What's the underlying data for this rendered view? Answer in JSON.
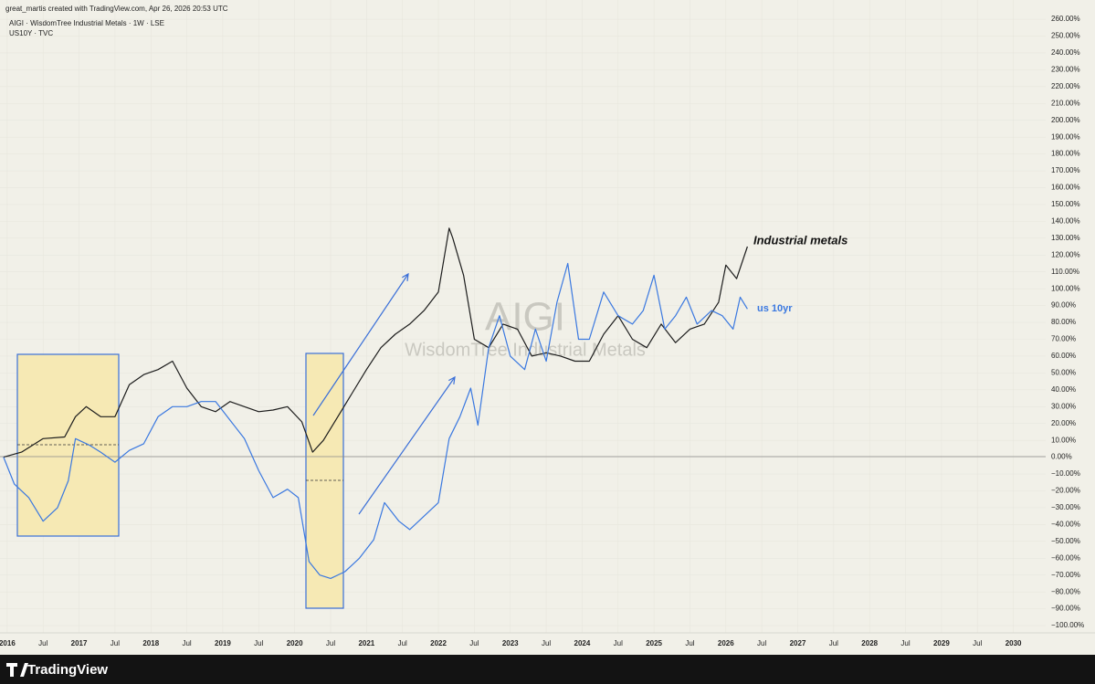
{
  "chart_data": {
    "type": "line",
    "attribution": "great_martis created with TradingView.com, Apr 26, 2026 20:53 UTC",
    "watermark": "AIGI",
    "watermark_subtitle": "WisdomTree Industrial Metals",
    "brand": "TradingView",
    "annotations": [
      "Industrial metals",
      "us 10yr"
    ],
    "xlim": [
      2015.9,
      2030.45
    ],
    "ylim": [
      -104.3,
      271.4
    ],
    "grid": true,
    "xticks": [
      2016,
      {
        "value": 2016.5,
        "label": "Jul"
      },
      2017,
      {
        "value": 2017.5,
        "label": "Jul"
      },
      2018,
      {
        "value": 2018.5,
        "label": "Jul"
      },
      2019,
      {
        "value": 2019.5,
        "label": "Jul"
      },
      2020,
      {
        "value": 2020.5,
        "label": "Jul"
      },
      2021,
      {
        "value": 2021.5,
        "label": "Jul"
      },
      2022,
      {
        "value": 2022.5,
        "label": "Jul"
      },
      2023,
      {
        "value": 2023.5,
        "label": "Jul"
      },
      2024,
      {
        "value": 2024.5,
        "label": "Jul"
      },
      2025,
      {
        "value": 2025.5,
        "label": "Jul"
      },
      2026,
      {
        "value": 2026.5,
        "label": "Jul"
      },
      2027,
      {
        "value": 2027.5,
        "label": "Jul"
      },
      2028,
      {
        "value": 2028.5,
        "label": "Jul"
      },
      2029,
      {
        "value": 2029.5,
        "label": "Jul"
      },
      2030
    ],
    "yticks": [
      {
        "value": 260,
        "label": "260.00%"
      },
      {
        "value": 250,
        "label": "250.00%"
      },
      {
        "value": 240,
        "label": "240.00%"
      },
      {
        "value": 230,
        "label": "230.00%"
      },
      {
        "value": 220,
        "label": "220.00%"
      },
      {
        "value": 210,
        "label": "210.00%"
      },
      {
        "value": 200,
        "label": "200.00%"
      },
      {
        "value": 190,
        "label": "190.00%"
      },
      {
        "value": 180,
        "label": "180.00%"
      },
      {
        "value": 170,
        "label": "170.00%"
      },
      {
        "value": 160,
        "label": "160.00%"
      },
      {
        "value": 150,
        "label": "150.00%"
      },
      {
        "value": 140,
        "label": "140.00%"
      },
      {
        "value": 130,
        "label": "130.00%"
      },
      {
        "value": 120,
        "label": "120.00%"
      },
      {
        "value": 110,
        "label": "110.00%"
      },
      {
        "value": 100,
        "label": "100.00%"
      },
      {
        "value": 90,
        "label": "90.00%"
      },
      {
        "value": 80,
        "label": "80.00%"
      },
      {
        "value": 70,
        "label": "70.00%"
      },
      {
        "value": 60,
        "label": "60.00%"
      },
      {
        "value": 50,
        "label": "50.00%"
      },
      {
        "value": 40,
        "label": "40.00%"
      },
      {
        "value": 30,
        "label": "30.00%"
      },
      {
        "value": 20,
        "label": "20.00%"
      },
      {
        "value": 10,
        "label": "10.00%"
      },
      {
        "value": 0,
        "label": "0.00%"
      },
      {
        "value": -10,
        "label": "−10.00%"
      },
      {
        "value": -20,
        "label": "−20.00%"
      },
      {
        "value": -30,
        "label": "−30.00%"
      },
      {
        "value": -40,
        "label": "−40.00%"
      },
      {
        "value": -50,
        "label": "−50.00%"
      },
      {
        "value": -60,
        "label": "−60.00%"
      },
      {
        "value": -70,
        "label": "−70.00%"
      },
      {
        "value": -80,
        "label": "−80.00%"
      },
      {
        "value": -90,
        "label": "−90.00%"
      },
      {
        "value": -100,
        "label": "−100.00%"
      }
    ],
    "series": [
      {
        "name": "AIGI · WisdomTree Industrial Metals · 1W · LSE",
        "color": "#1c1c1c",
        "x": [
          2015.95,
          2016.2,
          2016.5,
          2016.8,
          2016.95,
          2017.1,
          2017.3,
          2017.5,
          2017.7,
          2017.9,
          2018.1,
          2018.3,
          2018.5,
          2018.7,
          2018.9,
          2019.1,
          2019.3,
          2019.5,
          2019.7,
          2019.9,
          2020.1,
          2020.25,
          2020.4,
          2020.6,
          2020.8,
          2021.0,
          2021.2,
          2021.4,
          2021.6,
          2021.8,
          2022.0,
          2022.15,
          2022.2,
          2022.35,
          2022.5,
          2022.7,
          2022.9,
          2023.1,
          2023.3,
          2023.5,
          2023.7,
          2023.9,
          2024.1,
          2024.3,
          2024.5,
          2024.7,
          2024.9,
          2025.1,
          2025.3,
          2025.5,
          2025.7,
          2025.9,
          2026.0,
          2026.15,
          2026.3
        ],
        "values": [
          0,
          3,
          11,
          12,
          24,
          30,
          24,
          24,
          43,
          49,
          52,
          57,
          41,
          30,
          27,
          33,
          30,
          27,
          28,
          30,
          21,
          3,
          10,
          24,
          38,
          52,
          65,
          73,
          79,
          87,
          98,
          136,
          130,
          108,
          70,
          65,
          79,
          76,
          60,
          62,
          60,
          57,
          57,
          73,
          84,
          70,
          65,
          79,
          68,
          76,
          79,
          92,
          114,
          106,
          125
        ]
      },
      {
        "name": "US10Y · TVC",
        "color": "#3a78e0",
        "x": [
          2015.95,
          2016.1,
          2016.3,
          2016.5,
          2016.7,
          2016.85,
          2016.95,
          2017.15,
          2017.3,
          2017.5,
          2017.7,
          2017.9,
          2018.1,
          2018.3,
          2018.5,
          2018.7,
          2018.9,
          2019.1,
          2019.3,
          2019.5,
          2019.7,
          2019.9,
          2020.05,
          2020.2,
          2020.35,
          2020.5,
          2020.7,
          2020.9,
          2021.1,
          2021.25,
          2021.45,
          2021.6,
          2021.8,
          2022.0,
          2022.15,
          2022.3,
          2022.45,
          2022.55,
          2022.7,
          2022.85,
          2023.0,
          2023.2,
          2023.35,
          2023.5,
          2023.65,
          2023.8,
          2023.95,
          2024.1,
          2024.3,
          2024.5,
          2024.7,
          2024.85,
          2025.0,
          2025.15,
          2025.3,
          2025.45,
          2025.6,
          2025.8,
          2025.95,
          2026.1,
          2026.2,
          2026.3
        ],
        "values": [
          0,
          -16,
          -24,
          -38,
          -30,
          -14,
          11,
          7,
          3,
          -3,
          4,
          8,
          24,
          30,
          30,
          33,
          33,
          22,
          11,
          -8,
          -24,
          -19,
          -24,
          -62,
          -70,
          -72,
          -68,
          -60,
          -49,
          -27,
          -38,
          -43,
          -35,
          -27,
          11,
          24,
          41,
          19,
          65,
          84,
          60,
          52,
          76,
          57,
          92,
          115,
          70,
          70,
          98,
          84,
          79,
          87,
          108,
          76,
          84,
          95,
          79,
          87,
          84,
          76,
          95,
          88
        ]
      }
    ]
  }
}
